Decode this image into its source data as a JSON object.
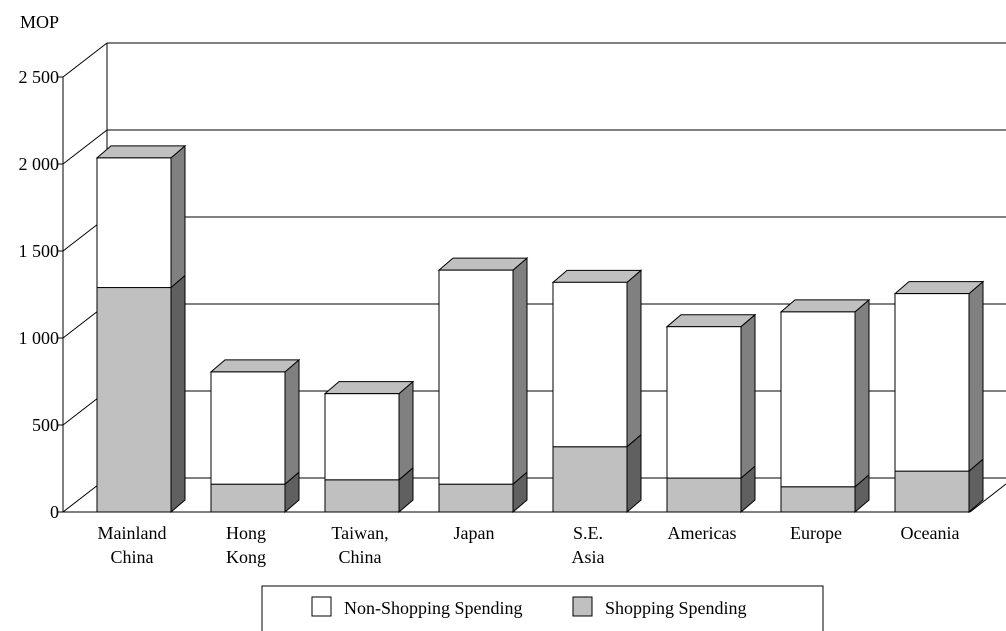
{
  "chart_data": {
    "type": "bar",
    "stacked": true,
    "three_d": true,
    "yunit": "MOP",
    "ylim": [
      0,
      2500
    ],
    "yticks": [
      {
        "value": 0,
        "label": "0"
      },
      {
        "value": 500,
        "label": "500"
      },
      {
        "value": 1000,
        "label": "1 000"
      },
      {
        "value": 1500,
        "label": "1 500"
      },
      {
        "value": 2000,
        "label": "2 000"
      },
      {
        "value": 2500,
        "label": "2 500"
      }
    ],
    "categories": [
      [
        "Mainland",
        "China"
      ],
      [
        "Hong",
        "Kong"
      ],
      [
        "Taiwan,",
        "China"
      ],
      [
        "Japan"
      ],
      [
        "S.E.",
        "Asia"
      ],
      [
        "Americas"
      ],
      [
        "Europe"
      ],
      [
        "Oceania"
      ]
    ],
    "series": [
      {
        "name": "Shopping Spending",
        "color": "#c0c0c0",
        "side": "#606060",
        "top": "#a0a0a0",
        "values": [
          1290,
          160,
          185,
          160,
          375,
          195,
          145,
          235
        ]
      },
      {
        "name": "Non-Shopping Spending",
        "color": "#ffffff",
        "side": "#808080",
        "top": "#c0c0c0",
        "values": [
          745,
          645,
          495,
          1230,
          945,
          870,
          1005,
          1020
        ]
      }
    ],
    "legend_position": "bottom",
    "grid": true
  }
}
